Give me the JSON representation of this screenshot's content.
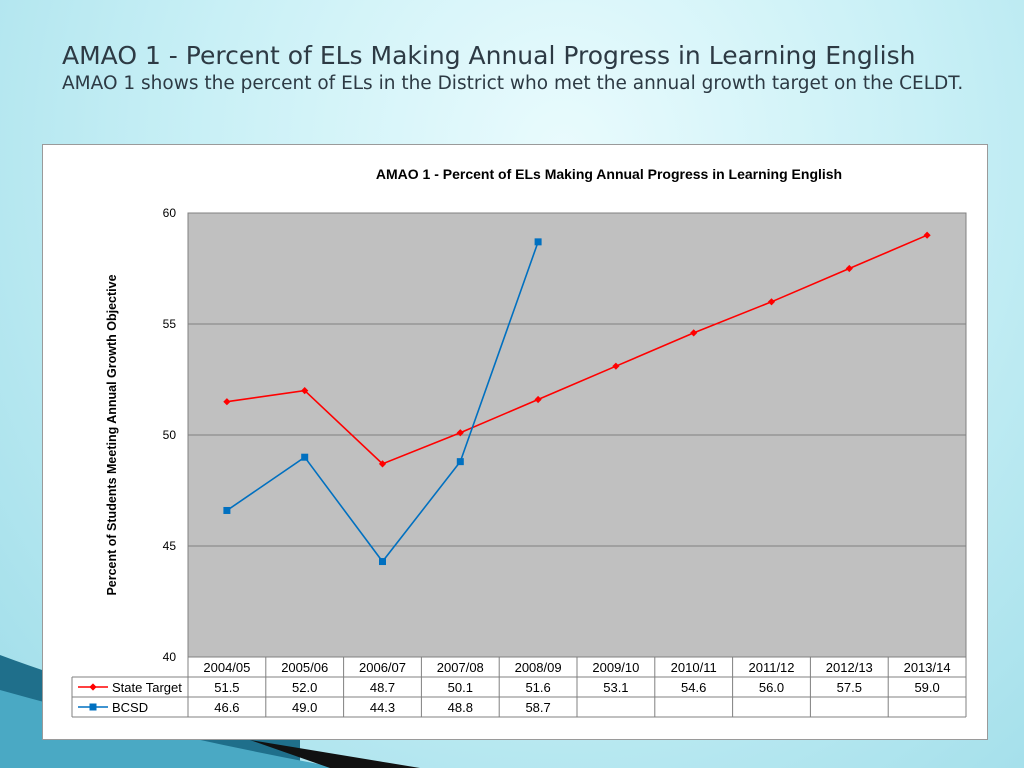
{
  "slide": {
    "title": "AMAO 1 - Percent of ELs Making Annual Progress in Learning English",
    "subtitle": "AMAO 1 shows the percent of ELs in the District who met the annual growth target on the CELDT."
  },
  "chart_data": {
    "type": "line",
    "title": "AMAO 1 - Percent of ELs Making Annual Progress in Learning English",
    "xlabel": "",
    "ylabel": "Percent of Students Meeting Annual Growth Objective",
    "ylim": [
      40,
      60
    ],
    "yticks": [
      40,
      45,
      50,
      55,
      60
    ],
    "grid": true,
    "plot_background": "#c0c0c0",
    "legend": "data-table",
    "categories": [
      "2004/05",
      "2005/06",
      "2006/07",
      "2007/08",
      "2008/09",
      "2009/10",
      "2010/11",
      "2011/12",
      "2012/13",
      "2013/14"
    ],
    "series": [
      {
        "name": "State Target",
        "color": "#ff0000",
        "marker": "diamond",
        "values": [
          51.5,
          52.0,
          48.7,
          50.1,
          51.6,
          53.1,
          54.6,
          56.0,
          57.5,
          59.0
        ],
        "labels": [
          "51.5",
          "52.0",
          "48.7",
          "50.1",
          "51.6",
          "53.1",
          "54.6",
          "56.0",
          "57.5",
          "59.0"
        ]
      },
      {
        "name": "BCSD",
        "color": "#0070c0",
        "marker": "square",
        "values": [
          46.6,
          49.0,
          44.3,
          48.8,
          58.7,
          null,
          null,
          null,
          null,
          null
        ],
        "labels": [
          "46.6",
          "49.0",
          "44.3",
          "48.8",
          "58.7",
          "",
          "",
          "",
          "",
          ""
        ]
      }
    ]
  }
}
